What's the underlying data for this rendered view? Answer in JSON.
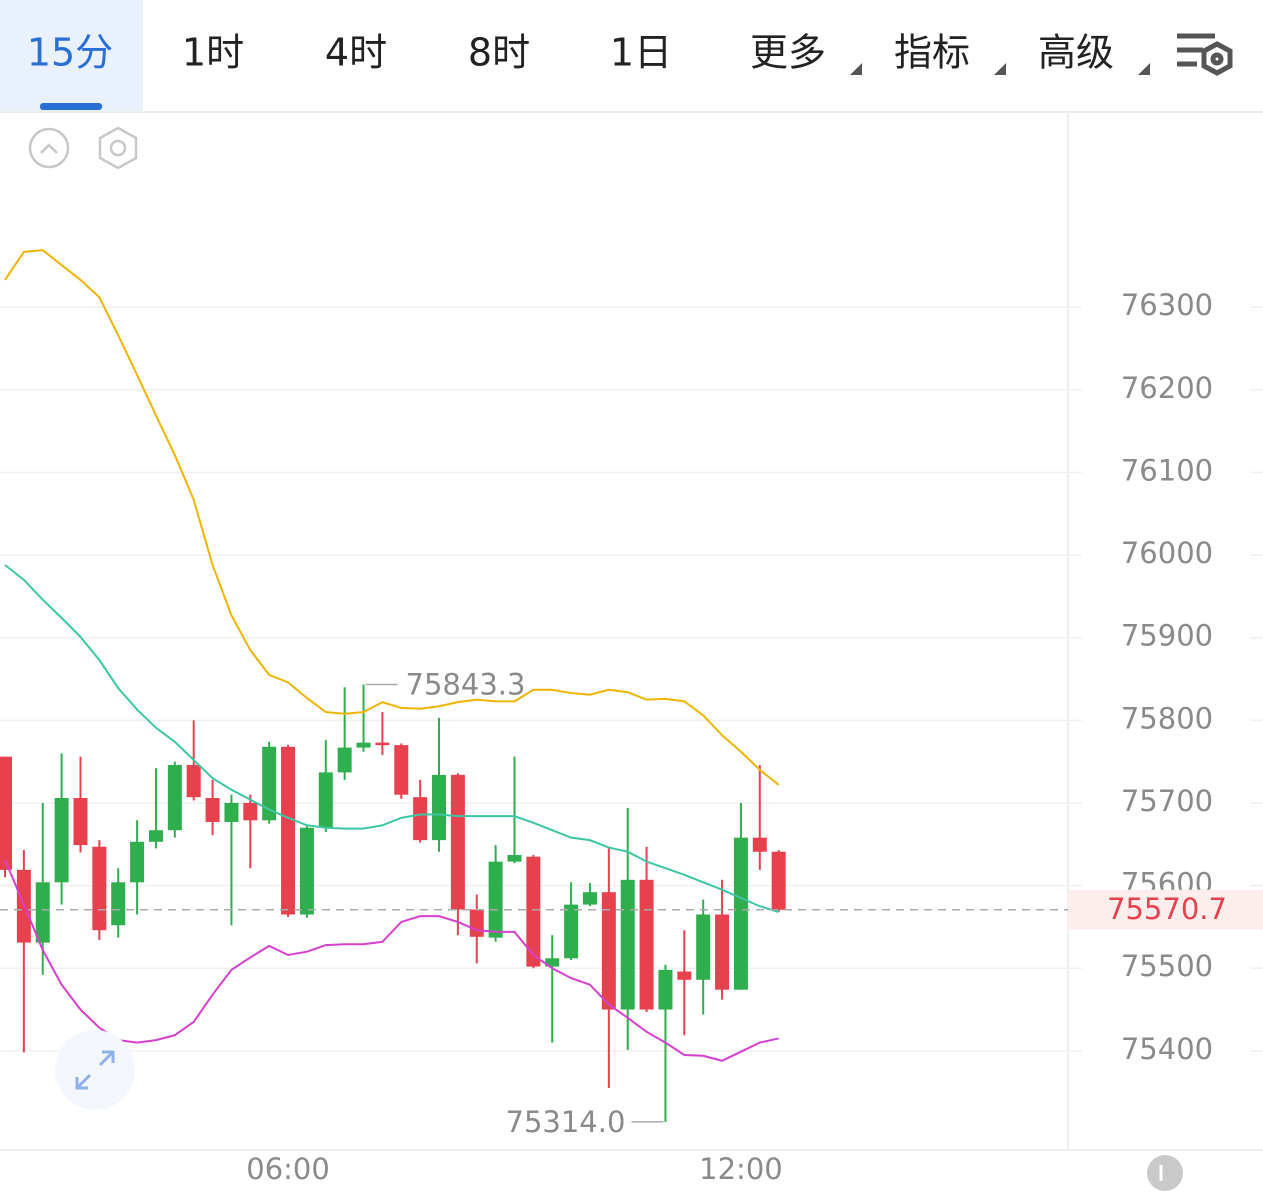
{
  "tabs": [
    {
      "label": "15分"
    },
    {
      "label": "1时"
    },
    {
      "label": "4时"
    },
    {
      "label": "8时"
    },
    {
      "label": "1日"
    },
    {
      "label": "更多",
      "dropdown": true
    },
    {
      "label": "指标",
      "dropdown": true
    },
    {
      "label": "高级",
      "dropdown": true
    }
  ],
  "chart_data": {
    "type": "candlestick",
    "categories": [
      null,
      null,
      null,
      null,
      null,
      null,
      null,
      null,
      null,
      null,
      null,
      null,
      null,
      null,
      null,
      "06:00",
      null,
      null,
      null,
      null,
      null,
      null,
      null,
      null,
      null,
      null,
      null,
      null,
      null,
      null,
      null,
      null,
      null,
      null,
      null,
      null,
      null,
      null,
      null,
      "12:00",
      null,
      null
    ],
    "open": [
      75756,
      75619,
      75531,
      75604,
      75706,
      75647,
      75552,
      75604,
      75653,
      75667,
      75746,
      75706,
      75677,
      75700,
      75679,
      75768,
      75565,
      75670,
      75737,
      75767,
      75773,
      75770,
      75707,
      75655,
      75734,
      75571,
      75537,
      75629,
      75635,
      75502,
      75512,
      75577,
      75592,
      75450,
      75607,
      75450,
      75496,
      75486,
      75565,
      75474,
      75658,
      75641
    ],
    "high": [
      75756,
      75643,
      75700,
      75760,
      75756,
      75655,
      75621,
      75679,
      75742,
      75750,
      75800,
      75728,
      75710,
      75710,
      75774,
      75770,
      75673,
      75776,
      75840,
      75843.3,
      75810,
      75772,
      75728,
      75803,
      75736,
      75589,
      75649,
      75756,
      75637,
      75540,
      75604,
      75603,
      75647,
      75694,
      75647,
      75504,
      75546,
      75583,
      75607,
      75700,
      75746,
      75643
    ],
    "low": [
      75610,
      75398,
      75492,
      75577,
      75640,
      75534,
      75537,
      75565,
      75645,
      75658,
      75703,
      75661,
      75552,
      75621,
      75675,
      75562,
      75561,
      75665,
      75728,
      75762,
      75758,
      75705,
      75652,
      75641,
      75540,
      75506,
      75532,
      75627,
      75500,
      75410,
      75510,
      75575,
      75355,
      75401,
      75447,
      75314.0,
      75419,
      75444,
      75462,
      75474,
      75619,
      75568
    ],
    "close": [
      75619,
      75531,
      75604,
      75706,
      75649,
      75546,
      75604,
      75653,
      75667,
      75746,
      75707,
      75677,
      75700,
      75679,
      75768,
      75565,
      75670,
      75737,
      75767,
      75773,
      75770,
      75710,
      75655,
      75734,
      75571,
      75538,
      75629,
      75637,
      75502,
      75512,
      75577,
      75592,
      75450,
      75607,
      75450,
      75498,
      75486,
      75565,
      75474,
      75658,
      75641,
      75570.7
    ],
    "up_color": "#2fae4e",
    "down_color": "#e8414e",
    "overlays": [
      {
        "color": "#f0b400",
        "values": [
          76333,
          76367,
          76369,
          76351,
          76333,
          76312,
          76266,
          76218,
          76169,
          76121,
          76067,
          75988,
          75927,
          75885,
          75855,
          75846,
          75827,
          75810,
          75808,
          75810,
          75822,
          75815,
          75814,
          75817,
          75822,
          75825,
          75823,
          75823,
          75837,
          75837,
          75833,
          75831,
          75837,
          75834,
          75825,
          75826,
          75823,
          75806,
          75782,
          75762,
          75740,
          75722
        ]
      },
      {
        "color": "#3cc6a4",
        "values": [
          75988,
          75970,
          75946,
          75924,
          75901,
          75873,
          75839,
          75813,
          75791,
          75774,
          75752,
          75730,
          75716,
          75704,
          75692,
          75682,
          75673,
          75670,
          75669,
          75669,
          75673,
          75682,
          75686,
          75686,
          75684,
          75684,
          75684,
          75684,
          75676,
          75667,
          75658,
          75655,
          75646,
          75641,
          75629,
          75621,
          75613,
          75604,
          75595,
          75585,
          75575,
          75568
        ]
      },
      {
        "color": "#d63fd0",
        "values": [
          75631,
          75577,
          75522,
          75480,
          75450,
          75428,
          75413,
          75410,
          75413,
          75419,
          75435,
          75468,
          75498,
          75513,
          75527,
          75516,
          75520,
          75528,
          75529,
          75529,
          75532,
          75556,
          75563,
          75563,
          75556,
          75546,
          75544,
          75544,
          75516,
          75500,
          75488,
          75480,
          75456,
          75440,
          75423,
          75410,
          75395,
          75394,
          75388,
          75399,
          75410,
          75415
        ]
      }
    ],
    "high_label": "75843.3",
    "low_label": "75314.0",
    "last_price_label": "75570.7",
    "ylim": [
      75280,
      76535
    ],
    "yticks": [
      75400,
      75500,
      75600,
      75700,
      75800,
      75900,
      76000,
      76100,
      76200,
      76300
    ],
    "grid": true
  }
}
